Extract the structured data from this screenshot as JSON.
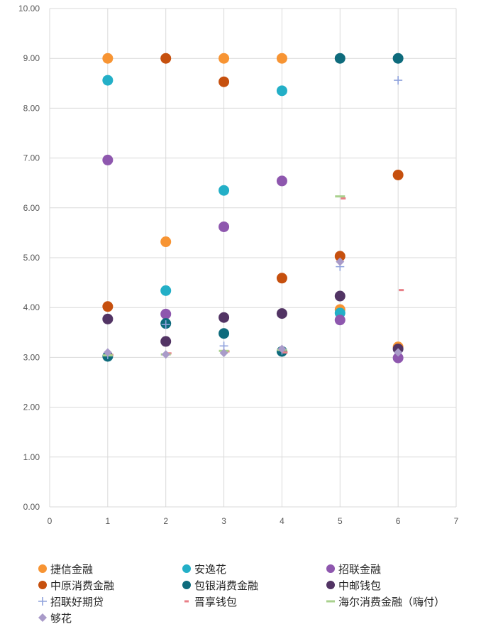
{
  "chart_data": {
    "type": "scatter",
    "title": "",
    "xlabel": "",
    "ylabel": "",
    "xlim": [
      0,
      7
    ],
    "ylim": [
      0,
      10
    ],
    "x_ticks": [
      "0",
      "1",
      "2",
      "3",
      "4",
      "5",
      "6",
      "7"
    ],
    "y_ticks": [
      "0.00",
      "1.00",
      "2.00",
      "3.00",
      "4.00",
      "5.00",
      "6.00",
      "7.00",
      "8.00",
      "9.00",
      "10.00"
    ],
    "grid": true,
    "legend_position": "bottom",
    "series": [
      {
        "name": "捷信金融",
        "color": "#F79433",
        "marker": "circle",
        "points": [
          [
            1,
            9.0
          ],
          [
            2,
            5.32
          ],
          [
            3,
            9.0
          ],
          [
            4,
            9.0
          ],
          [
            5,
            3.96
          ],
          [
            6,
            3.21
          ]
        ]
      },
      {
        "name": "安逸花",
        "color": "#23AFC7",
        "marker": "circle",
        "points": [
          [
            1,
            8.56
          ],
          [
            2,
            4.34
          ],
          [
            3,
            6.35
          ],
          [
            4,
            8.35
          ],
          [
            5,
            3.89
          ]
        ]
      },
      {
        "name": "招联金融",
        "color": "#8E57AE",
        "marker": "circle",
        "points": [
          [
            1,
            6.96
          ],
          [
            2,
            3.87
          ],
          [
            3,
            5.62
          ],
          [
            4,
            6.54
          ],
          [
            5,
            3.75
          ],
          [
            6,
            2.99
          ]
        ]
      },
      {
        "name": "中原消费金融",
        "color": "#C6500E",
        "marker": "circle",
        "points": [
          [
            1,
            4.02
          ],
          [
            2,
            9.0
          ],
          [
            3,
            8.53
          ],
          [
            4,
            4.59
          ],
          [
            5,
            5.03
          ],
          [
            6,
            6.66
          ]
        ]
      },
      {
        "name": "包银消费金融",
        "color": "#0E6B7C",
        "marker": "circle",
        "points": [
          [
            1,
            3.02
          ],
          [
            2,
            3.68
          ],
          [
            3,
            3.48
          ],
          [
            4,
            3.12
          ],
          [
            5,
            9.0
          ],
          [
            6,
            9.0
          ]
        ]
      },
      {
        "name": "中邮钱包",
        "color": "#523464",
        "marker": "circle",
        "points": [
          [
            1,
            3.77
          ],
          [
            2,
            3.32
          ],
          [
            3,
            3.8
          ],
          [
            4,
            3.88
          ],
          [
            5,
            4.23
          ],
          [
            6,
            3.17
          ]
        ]
      },
      {
        "name": "招联好期贷",
        "color": "#8FA2DC",
        "marker": "plus",
        "points": [
          [
            1,
            3.05
          ],
          [
            2,
            3.66
          ],
          [
            3,
            3.23
          ],
          [
            4,
            3.14
          ],
          [
            5,
            4.82
          ],
          [
            6,
            8.56
          ]
        ]
      },
      {
        "name": "晋享钱包",
        "color": "#E87F87",
        "marker": "dash",
        "points": [
          [
            1,
            3.05
          ],
          [
            2,
            3.08
          ],
          [
            3,
            3.12
          ],
          [
            4,
            3.1
          ],
          [
            5,
            6.19
          ],
          [
            6,
            4.35
          ]
        ]
      },
      {
        "name": "海尔消费金融（嗨付）",
        "color": "#A9D18E",
        "marker": "line",
        "points": [
          [
            1,
            3.04
          ],
          [
            2,
            3.06
          ],
          [
            3,
            3.13
          ],
          [
            4,
            3.15
          ],
          [
            5,
            6.23
          ]
        ]
      },
      {
        "name": "够花",
        "color": "#A99BC9",
        "marker": "diamond",
        "points": [
          [
            1,
            3.1
          ],
          [
            2,
            3.06
          ],
          [
            3,
            3.09
          ],
          [
            4,
            3.17
          ],
          [
            5,
            4.92
          ],
          [
            6,
            3.1
          ]
        ]
      }
    ]
  }
}
